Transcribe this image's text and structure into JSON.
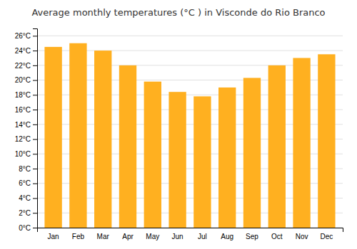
{
  "chart_data": {
    "type": "bar",
    "title": "Average monthly temperatures (°C ) in Visconde do Rio Branco",
    "categories": [
      "Jan",
      "Feb",
      "Mar",
      "Apr",
      "May",
      "Jun",
      "Jul",
      "Aug",
      "Sep",
      "Oct",
      "Nov",
      "Dec"
    ],
    "values": [
      24.5,
      25.0,
      24.0,
      22.0,
      19.8,
      18.4,
      17.8,
      19.0,
      20.3,
      22.0,
      23.0,
      23.5
    ],
    "color": "#FFB020",
    "ylim": [
      0,
      27
    ],
    "yticks": [
      {
        "value": 0,
        "label": "0°C"
      },
      {
        "value": 2,
        "label": "2°C"
      },
      {
        "value": 4,
        "label": "4°C"
      },
      {
        "value": 6,
        "label": "6°C"
      },
      {
        "value": 8,
        "label": "8°C"
      },
      {
        "value": 10,
        "label": "10°C"
      },
      {
        "value": 12,
        "label": "12°C"
      },
      {
        "value": 14,
        "label": "14°C"
      },
      {
        "value": 16,
        "label": "16°C"
      },
      {
        "value": 18,
        "label": "18°C"
      },
      {
        "value": 20,
        "label": "20°C"
      },
      {
        "value": 22,
        "label": "22°C"
      },
      {
        "value": 24,
        "label": "24°C"
      },
      {
        "value": 26,
        "label": "26°C"
      }
    ],
    "grid": true
  }
}
